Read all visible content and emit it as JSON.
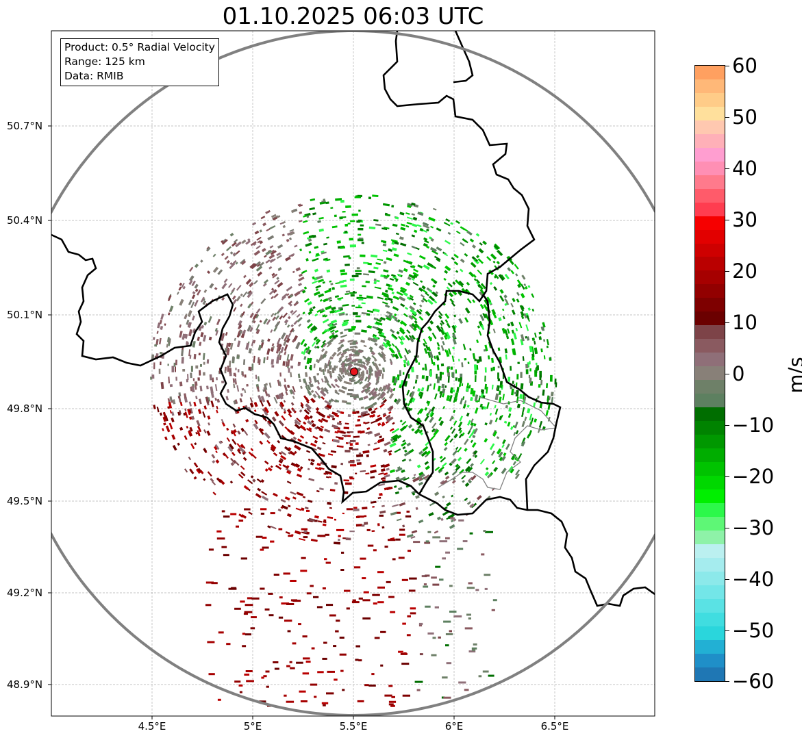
{
  "title": "01.10.2025 06:03 UTC",
  "info_box": {
    "product": "Product: 0.5° Radial Velocity",
    "range": "Range: 125 km",
    "data": "Data: RMIB"
  },
  "map": {
    "lon_range": [
      4.0,
      7.0
    ],
    "lat_range": [
      48.8,
      50.98
    ],
    "radar_site": {
      "lon": 5.505,
      "lat": 49.914
    },
    "radar_marker_color": "#e8141c",
    "range_ring_color": "#808080",
    "border_color": "#000000",
    "grid_lines": true
  },
  "axes": {
    "y_ticks": [
      "50.7°N",
      "50.4°N",
      "50.1°N",
      "49.8°N",
      "49.5°N",
      "49.2°N",
      "48.9°N"
    ],
    "x_ticks": [
      "4.5°E",
      "5°E",
      "5.5°E",
      "6°E",
      "6.5°E"
    ]
  },
  "colorbar": {
    "unit": "m/s",
    "min": -60,
    "max": 60,
    "ticks": [
      "60",
      "50",
      "40",
      "30",
      "20",
      "10",
      "0",
      "−10",
      "−20",
      "−30",
      "−40",
      "−50",
      "−60"
    ],
    "colors_low_to_high": [
      "#1f77b4",
      "#1f8fc8",
      "#22b0d4",
      "#2ad6dc",
      "#40dde0",
      "#5ae2e4",
      "#73e6e8",
      "#8ce9ea",
      "#a5ecee",
      "#bbf0f0",
      "#8ef2a8",
      "#5ef776",
      "#2cf84a",
      "#00ef00",
      "#00d800",
      "#00c300",
      "#00ad00",
      "#009800",
      "#008300",
      "#006e00",
      "#5d8060",
      "#6e8068",
      "#888078",
      "#8f6f78",
      "#8a5a60",
      "#7d4348",
      "#6b0000",
      "#7e0000",
      "#920000",
      "#a60000",
      "#ba0000",
      "#ce0000",
      "#e20000",
      "#f60000",
      "#ff3d50",
      "#ff5b6a",
      "#ff7a8c",
      "#ff8fb4",
      "#ff9ed0",
      "#ffb0b8",
      "#ffc8b0",
      "#ffe09c",
      "#ffcc88",
      "#ffb878",
      "#ffa060"
    ]
  }
}
